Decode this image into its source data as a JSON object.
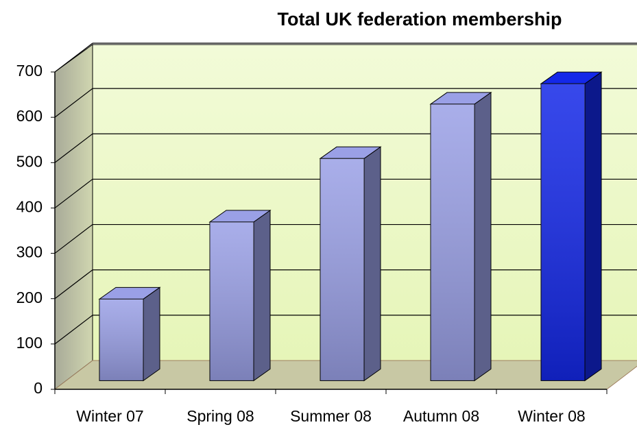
{
  "chart_data": {
    "type": "bar3d",
    "title": "Total UK federation membership",
    "categories": [
      "Winter 07",
      "Spring 08",
      "Summer 08",
      "Autumn 08",
      "Winter 08"
    ],
    "values": [
      180,
      350,
      490,
      610,
      655
    ],
    "colors": [
      "#9aa0e6",
      "#9aa0e6",
      "#9aa0e6",
      "#9aa0e6",
      "#1428e8"
    ],
    "ylim": [
      0,
      700
    ],
    "yticks": [
      0,
      100,
      200,
      300,
      400,
      500,
      600,
      700
    ],
    "grid": true
  }
}
